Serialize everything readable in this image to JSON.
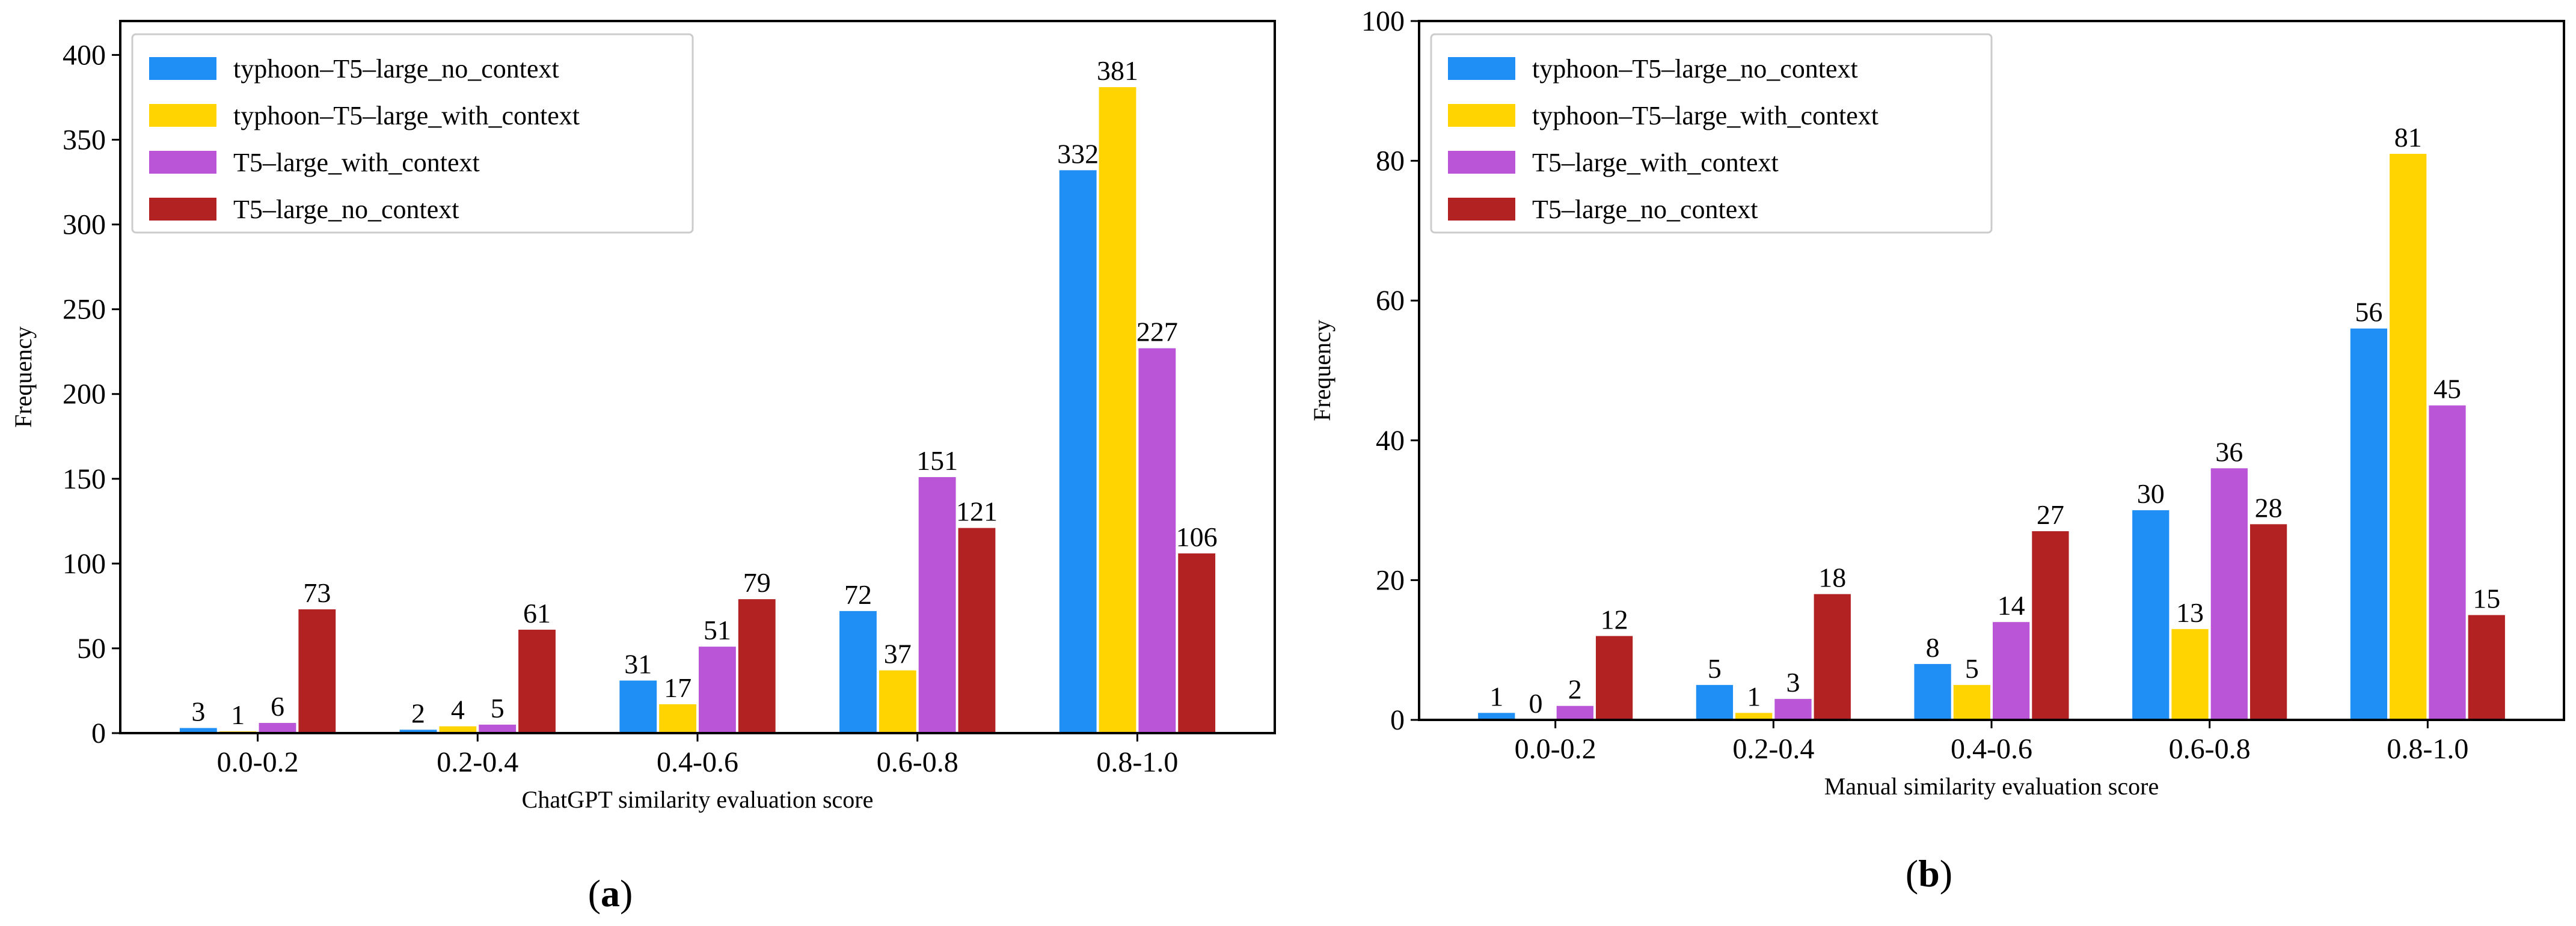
{
  "chart_data": [
    {
      "type": "bar",
      "panel_label": "(a)",
      "panel_letter": "a",
      "xlabel": "ChatGPT similarity evaluation score",
      "ylabel": "Frequency",
      "ylim": [
        0,
        420
      ],
      "yticks": [
        0,
        50,
        100,
        150,
        200,
        250,
        300,
        350,
        400
      ],
      "categories": [
        "0.0-0.2",
        "0.2-0.4",
        "0.4-0.6",
        "0.6-0.8",
        "0.8-1.0"
      ],
      "legend_position": "top-left",
      "series": [
        {
          "name": "typhoon–T5–large_no_context",
          "color": "#1f8ff5",
          "values": [
            3,
            2,
            31,
            72,
            332
          ],
          "labels": [
            "3",
            "2",
            "31",
            "72",
            "332"
          ]
        },
        {
          "name": "typhoon–T5–large_with_context",
          "color": "#ffd400",
          "values": [
            1,
            4,
            17,
            37,
            381
          ],
          "labels": [
            "1",
            "4",
            "17",
            "37",
            "381"
          ]
        },
        {
          "name": "T5–large_with_context",
          "color": "#b955d6",
          "values": [
            6,
            5,
            51,
            151,
            227
          ],
          "labels": [
            "6",
            "5",
            "51",
            "151",
            "227"
          ]
        },
        {
          "name": "T5–large_no_context",
          "color": "#b22222",
          "values": [
            73,
            61,
            79,
            121,
            106
          ],
          "labels": [
            "73",
            "61",
            "79",
            "121",
            "106"
          ]
        }
      ]
    },
    {
      "type": "bar",
      "panel_label": "(b)",
      "panel_letter": "b",
      "xlabel": "Manual similarity evaluation score",
      "ylabel": "Frequency",
      "ylim": [
        0,
        100
      ],
      "yticks": [
        0,
        20,
        40,
        60,
        80,
        100
      ],
      "categories": [
        "0.0-0.2",
        "0.2-0.4",
        "0.4-0.6",
        "0.6-0.8",
        "0.8-1.0"
      ],
      "legend_position": "top-left",
      "series": [
        {
          "name": "typhoon–T5–large_no_context",
          "color": "#1f8ff5",
          "values": [
            1,
            5,
            8,
            30,
            56
          ],
          "labels": [
            "1",
            "5",
            "8",
            "30",
            "56"
          ]
        },
        {
          "name": "typhoon–T5–large_with_context",
          "color": "#ffd400",
          "values": [
            0,
            1,
            5,
            13,
            81
          ],
          "labels": [
            "0",
            "1",
            "5",
            "13",
            "81"
          ]
        },
        {
          "name": "T5–large_with_context",
          "color": "#b955d6",
          "values": [
            2,
            3,
            14,
            36,
            45
          ],
          "labels": [
            "2",
            "3",
            "14",
            "36",
            "45"
          ]
        },
        {
          "name": "T5–large_no_context",
          "color": "#b22222",
          "values": [
            12,
            18,
            27,
            28,
            15
          ],
          "labels": [
            "12",
            "18",
            "27",
            "28",
            "15"
          ]
        }
      ]
    }
  ]
}
